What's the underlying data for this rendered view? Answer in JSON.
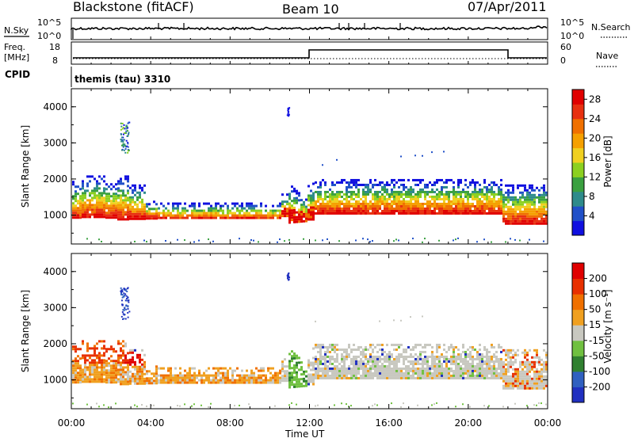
{
  "header": {
    "station": "Blackstone (fitACF)",
    "beam": "Beam 10",
    "date": "07/Apr/2011"
  },
  "noise_panel": {
    "left_label": "N.Sky",
    "left_ticks": [
      "10^5",
      "10^0"
    ],
    "right_ticks": [
      "10^5",
      "10^0"
    ],
    "right_label": "N.Search"
  },
  "freq_panel": {
    "left_label_1": "Freq.",
    "left_label_2": "[MHz]",
    "left_ticks": [
      "18",
      "8"
    ],
    "right_ticks": [
      "60",
      "0"
    ],
    "right_label": "Nave"
  },
  "cpid": {
    "label": "CPID",
    "value": "themis (tau) 3310"
  },
  "colors": {
    "frame": "#000000",
    "grey_scatter": "#c8c8c0"
  },
  "chart_data": [
    {
      "type": "heatmap",
      "name_hint": "power",
      "ylabel": "Slant Range [km]",
      "yticks": [
        "1000",
        "2000",
        "3000",
        "4000"
      ],
      "ylim": [
        200,
        4500
      ],
      "xlim": [
        0,
        24
      ],
      "colorbar": {
        "label": "Power [dB]",
        "ticks": [
          "28",
          "24",
          "20",
          "16",
          "12",
          "8",
          "4"
        ],
        "range": [
          0,
          30
        ],
        "colors": [
          "#1010e0",
          "#2050c8",
          "#2e8b8b",
          "#3aa040",
          "#8cd020",
          "#f0d020",
          "#f5a000",
          "#f07000",
          "#e83010",
          "#e00000"
        ]
      }
    },
    {
      "type": "heatmap",
      "name_hint": "velocity",
      "ylabel": "Slant Range [km]",
      "yticks": [
        "1000",
        "2000",
        "3000",
        "4000"
      ],
      "ylim": [
        200,
        4500
      ],
      "xlim": [
        0,
        24
      ],
      "xticks": [
        "00:00",
        "04:00",
        "08:00",
        "12:00",
        "16:00",
        "20:00",
        "00:00"
      ],
      "xlabel": "Time UT",
      "colorbar": {
        "label": "Velocity [m s⁻¹]",
        "ticks": [
          "200",
          "100",
          "50",
          "15",
          "-15",
          "-50",
          "-100",
          "-200"
        ],
        "range": [
          -250,
          250
        ],
        "colors": [
          "#2030c0",
          "#3060c0",
          "#308030",
          "#70c040",
          "#c8c8c0",
          "#f0a020",
          "#f07000",
          "#e83000",
          "#e00000"
        ]
      }
    }
  ]
}
